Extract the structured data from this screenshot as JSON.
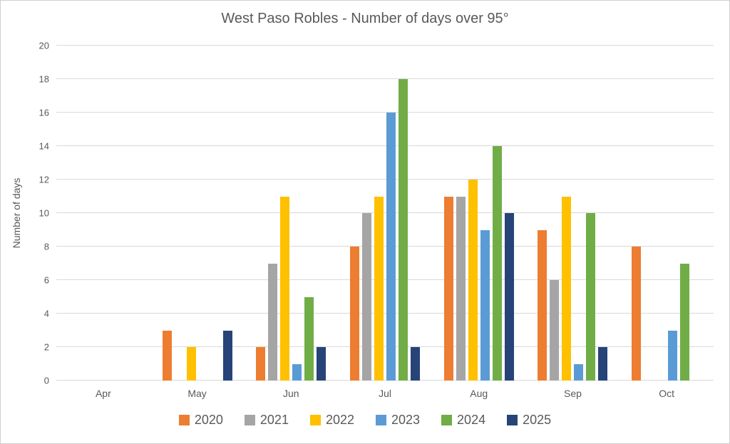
{
  "title": "West Paso Robles - Number of days over 95°",
  "chart_data": {
    "type": "bar",
    "title": "West Paso Robles - Number of days over 95°",
    "xlabel": "",
    "ylabel": "Number of days",
    "ylim": [
      0,
      20
    ],
    "yticks": [
      0,
      2,
      4,
      6,
      8,
      10,
      12,
      14,
      16,
      18,
      20
    ],
    "grid": true,
    "legend_position": "bottom",
    "categories": [
      "Apr",
      "May",
      "Jun",
      "Jul",
      "Aug",
      "Sep",
      "Oct"
    ],
    "series": [
      {
        "name": "2020",
        "color": "#ED7D31",
        "values": [
          0,
          3,
          2,
          8,
          11,
          9,
          8
        ]
      },
      {
        "name": "2021",
        "color": "#A5A5A5",
        "values": [
          0,
          0,
          7,
          10,
          11,
          6,
          0
        ]
      },
      {
        "name": "2022",
        "color": "#FFC000",
        "values": [
          0,
          2,
          11,
          11,
          12,
          11,
          0
        ]
      },
      {
        "name": "2023",
        "color": "#5B9BD5",
        "values": [
          0,
          0,
          1,
          16,
          9,
          1,
          3
        ]
      },
      {
        "name": "2024",
        "color": "#70AD47",
        "values": [
          0,
          0,
          5,
          18,
          14,
          10,
          7
        ]
      },
      {
        "name": "2025",
        "color": "#264478",
        "values": [
          0,
          3,
          2,
          2,
          10,
          2,
          0
        ]
      }
    ],
    "style": {
      "text_color": "#595959",
      "gridline_color": "#D9D9D9",
      "background_color": "#FFFFFF"
    }
  }
}
